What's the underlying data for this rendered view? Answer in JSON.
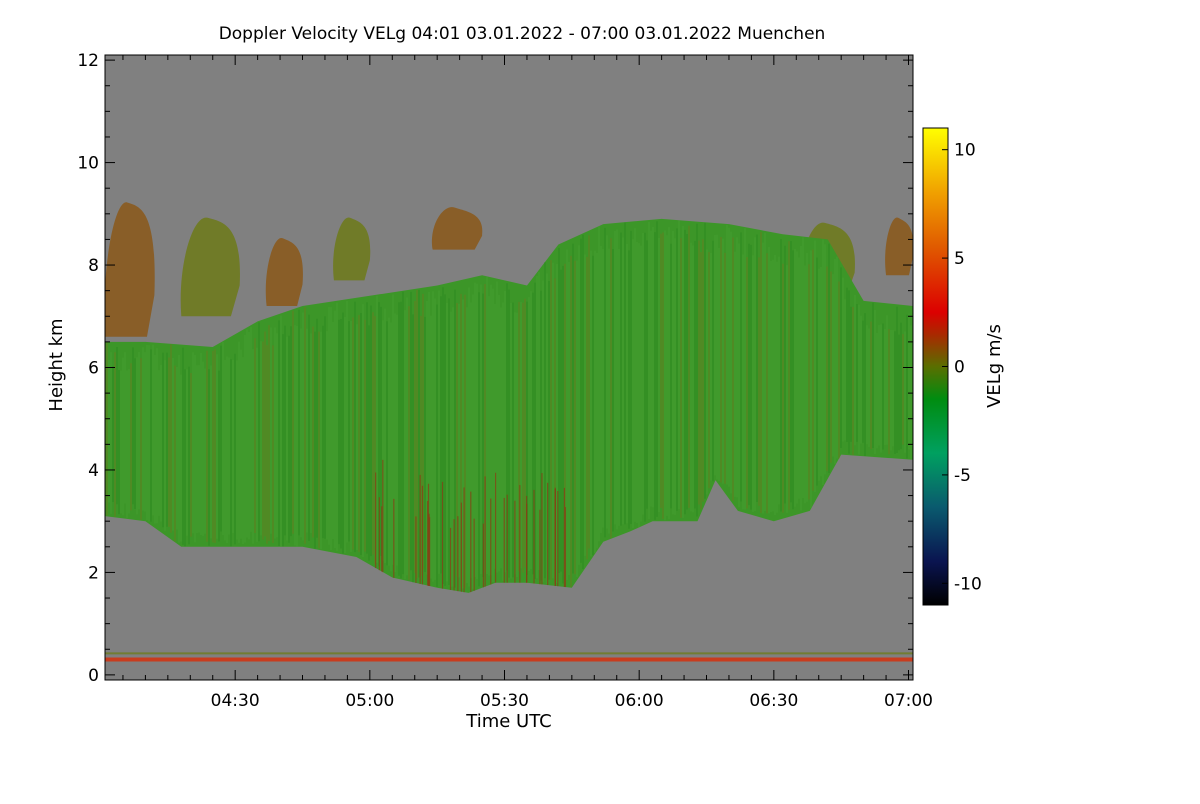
{
  "chart_data": {
    "type": "heatmap",
    "title": "Doppler Velocity VELg   04:01 03.01.2022 - 07:00 03.01.2022 Muenchen",
    "xlabel": "Time UTC",
    "ylabel": "Height km",
    "x_range_minutes_utc": [
      241,
      421
    ],
    "x_ticks": [
      {
        "value": 270,
        "label": "04:30"
      },
      {
        "value": 300,
        "label": "05:00"
      },
      {
        "value": 330,
        "label": "05:30"
      },
      {
        "value": 360,
        "label": "06:00"
      },
      {
        "value": 390,
        "label": "06:30"
      },
      {
        "value": 420,
        "label": "07:00"
      }
    ],
    "y_range_km": [
      -0.1,
      12.1
    ],
    "y_ticks": [
      {
        "value": 0,
        "label": "0"
      },
      {
        "value": 2,
        "label": "2"
      },
      {
        "value": 4,
        "label": "4"
      },
      {
        "value": 6,
        "label": "6"
      },
      {
        "value": 8,
        "label": "8"
      },
      {
        "value": 10,
        "label": "10"
      },
      {
        "value": 12,
        "label": "12"
      }
    ],
    "colorbar": {
      "label": "VELg m/s",
      "range": [
        -11,
        11
      ],
      "ticks": [
        {
          "value": 10,
          "label": "10"
        },
        {
          "value": 5,
          "label": "5"
        },
        {
          "value": 0,
          "label": "0"
        },
        {
          "value": -5,
          "label": "-5"
        },
        {
          "value": -10,
          "label": "-10"
        }
      ],
      "stops": [
        {
          "value": -11,
          "color": "#000000"
        },
        {
          "value": -9,
          "color": "#0a1450"
        },
        {
          "value": -6.5,
          "color": "#0a5a6e"
        },
        {
          "value": -4,
          "color": "#00a060"
        },
        {
          "value": -1.5,
          "color": "#008c10"
        },
        {
          "value": 0,
          "color": "#5a6e00"
        },
        {
          "value": 1.5,
          "color": "#aa2800"
        },
        {
          "value": 2.5,
          "color": "#dc0000"
        },
        {
          "value": 5.5,
          "color": "#e05a00"
        },
        {
          "value": 8,
          "color": "#f0a000"
        },
        {
          "value": 11,
          "color": "#ffff00"
        }
      ]
    },
    "colors": {
      "no_data": "#808080",
      "cloud_main": "#3c9628",
      "cloud_dark": "#2a8a1e",
      "cloud_upper": "#6e7a1e",
      "cloud_brown": "#8a5a1e",
      "ground_line": "#c83c1e"
    },
    "cloud_layers": [
      {
        "name": "main-cloud-layer",
        "mean_velocity_ms": -1.5,
        "top_km": [
          [
            241,
            6.5
          ],
          [
            250,
            6.5
          ],
          [
            265,
            6.4
          ],
          [
            275,
            6.9
          ],
          [
            285,
            7.2
          ],
          [
            300,
            7.4
          ],
          [
            315,
            7.6
          ],
          [
            325,
            7.8
          ],
          [
            335,
            7.6
          ],
          [
            342,
            8.4
          ],
          [
            352,
            8.8
          ],
          [
            365,
            8.9
          ],
          [
            380,
            8.8
          ],
          [
            392,
            8.6
          ],
          [
            402,
            8.5
          ],
          [
            410,
            7.3
          ],
          [
            421,
            7.2
          ]
        ],
        "base_km": [
          [
            241,
            3.1
          ],
          [
            250,
            3.0
          ],
          [
            258,
            2.5
          ],
          [
            270,
            2.5
          ],
          [
            285,
            2.5
          ],
          [
            297,
            2.3
          ],
          [
            305,
            1.9
          ],
          [
            315,
            1.7
          ],
          [
            322,
            1.6
          ],
          [
            328,
            1.8
          ],
          [
            335,
            1.8
          ],
          [
            345,
            1.7
          ],
          [
            352,
            2.6
          ],
          [
            358,
            2.8
          ],
          [
            363,
            3.0
          ],
          [
            373,
            3.0
          ],
          [
            377,
            3.8
          ],
          [
            382,
            3.2
          ],
          [
            390,
            3.0
          ],
          [
            398,
            3.2
          ],
          [
            405,
            4.3
          ],
          [
            421,
            4.2
          ]
        ]
      },
      {
        "name": "upper-cloud-patches",
        "mean_velocity_ms": 0.5,
        "patches": [
          {
            "t": [
              241,
              252
            ],
            "base_km": 6.6,
            "top_km": 9.3
          },
          {
            "t": [
              258,
              271
            ],
            "base_km": 7.0,
            "top_km": 9.0
          },
          {
            "t": [
              277,
              285
            ],
            "base_km": 7.2,
            "top_km": 8.6
          },
          {
            "t": [
              292,
              300
            ],
            "base_km": 7.7,
            "top_km": 9.0
          },
          {
            "t": [
              314,
              325
            ],
            "base_km": 8.3,
            "top_km": 9.2
          },
          {
            "t": [
              396,
              408
            ],
            "base_km": 7.4,
            "top_km": 8.9
          },
          {
            "t": [
              415,
              421
            ],
            "base_km": 7.8,
            "top_km": 9.0
          }
        ]
      },
      {
        "name": "ground-clutter",
        "mean_velocity_ms": 1.5,
        "height_km": 0.3
      }
    ]
  }
}
